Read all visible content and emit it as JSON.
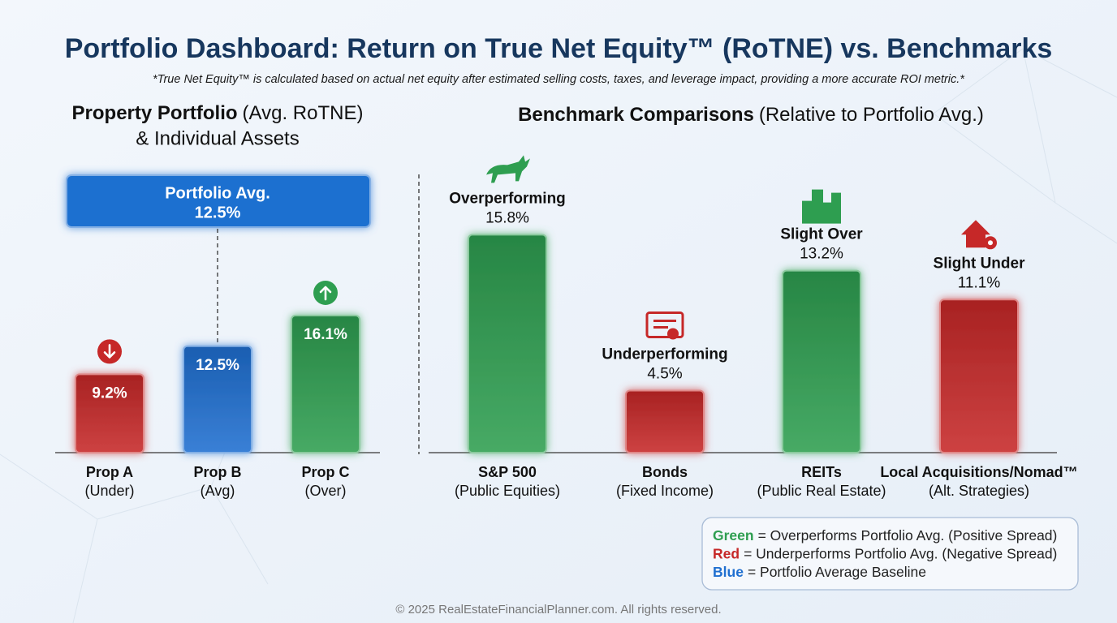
{
  "title": "Portfolio Dashboard: Return on True Net Equity™ (RoTNE) vs. Benchmarks",
  "subtitle": "*True Net Equity™ is calculated based on actual net equity after estimated selling costs, taxes, and leverage impact, providing a more accurate ROI metric.*",
  "chart_data": [
    {
      "type": "bar",
      "title_bold": "Property Portfolio",
      "title_rest": "(Avg. RoTNE)",
      "title_line2": "& Individual Assets",
      "categories": [
        "Prop A",
        "Prop B",
        "Prop C"
      ],
      "category_notes": [
        "(Under)",
        "(Avg)",
        "(Over)"
      ],
      "values": [
        9.2,
        12.5,
        16.1
      ],
      "value_labels": [
        "9.2%",
        "12.5%",
        "16.1%"
      ],
      "colors": [
        "#c62828",
        "#1f6fd0",
        "#2e9e50"
      ],
      "average": {
        "label": "Portfolio Avg.",
        "value": 12.5,
        "value_label": "12.5%",
        "color": "#1f6fd0"
      }
    },
    {
      "type": "bar",
      "title_bold": "Benchmark Comparisons",
      "title_rest": "(Relative to Portfolio Avg.)",
      "categories": [
        "S&P 500",
        "Bonds",
        "REITs",
        "Local Acquisitions/Nomad™"
      ],
      "category_notes": [
        "(Public Equities)",
        "(Fixed Income)",
        "(Public Real Estate)",
        "(Alt. Strategies)"
      ],
      "status": [
        "Overperforming",
        "Underperforming",
        "Slight Over",
        "Slight Under"
      ],
      "values": [
        15.8,
        4.5,
        13.2,
        11.1
      ],
      "value_labels": [
        "15.8%",
        "4.5%",
        "13.2%",
        "11.1%"
      ],
      "colors": [
        "#2e9e50",
        "#c62828",
        "#2e9e50",
        "#c62828"
      ]
    }
  ],
  "legend": [
    {
      "keyword": "Green",
      "text": "= Overperforms Portfolio Avg. (Positive Spread)",
      "color": "#2e9e50"
    },
    {
      "keyword": "Red",
      "text": "= Underperforms Portfolio Avg. (Negative Spread)",
      "color": "#c62828"
    },
    {
      "keyword": "Blue",
      "text": "= Portfolio Average Baseline",
      "color": "#1f6fd0"
    }
  ],
  "footer": "© 2025 RealEstateFinancialPlanner.com. All rights reserved."
}
